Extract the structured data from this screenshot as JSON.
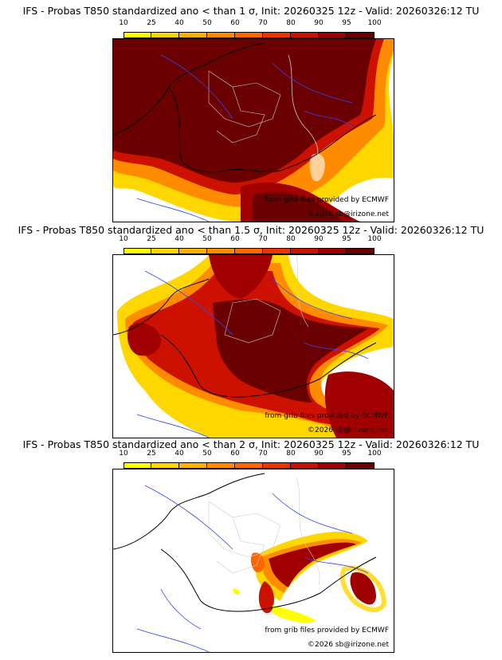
{
  "panels": [
    {
      "title": "IFS - Probas T850  standardized ano < than 1 σ, Init: 20260325 12z - Valid: 20260326:12 TU",
      "credit_source": "from grib files provided by ECMWF",
      "credit_copyright": "©2026 sb@irizone.net"
    },
    {
      "title": "IFS - Probas T850  standardized ano < than 1.5 σ, Init: 20260325 12z - Valid: 20260326:12 TU",
      "credit_source": "from grib files provided by ECMWF",
      "credit_copyright": "©2026 sb@irizone.net"
    },
    {
      "title": "IFS - Probas T850  standardized ano < than 2 σ, Init: 20260325 12z - Valid: 20260326:12 TU",
      "credit_source": "from grib files provided by ECMWF",
      "credit_copyright": "©2026 sb@irizone.net"
    }
  ],
  "legend": {
    "labels": [
      "10",
      "25",
      "40",
      "50",
      "60",
      "70",
      "80",
      "90",
      "95",
      "100"
    ],
    "colors": [
      "#ffff00",
      "#ffd700",
      "#ffb300",
      "#ff8c00",
      "#ff6600",
      "#ee3300",
      "#cc1100",
      "#a00000",
      "#6a0000"
    ]
  }
}
